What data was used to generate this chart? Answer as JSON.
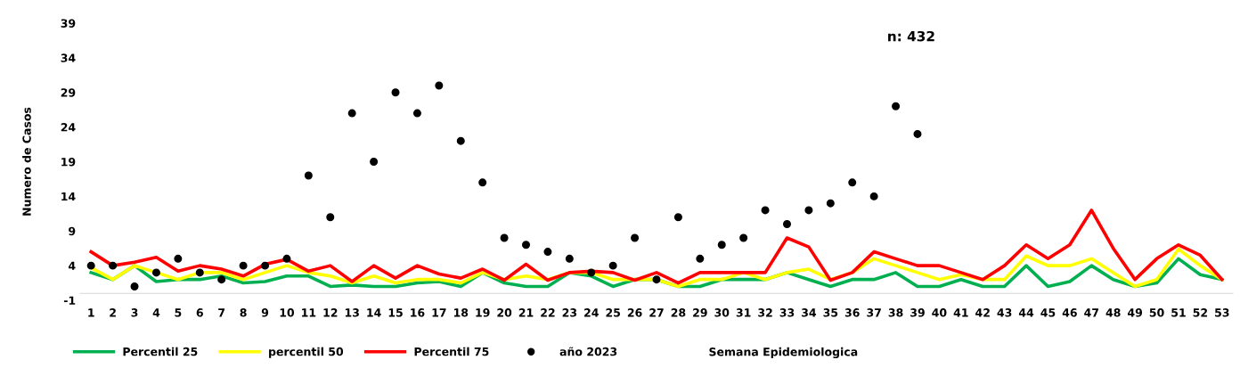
{
  "chart_data": {
    "type": "line",
    "xlabel": "Semana Epidemiologica",
    "ylabel": "Numero de Casos",
    "categories": [
      "1",
      "2",
      "3",
      "4",
      "5",
      "6",
      "7",
      "8",
      "9",
      "10",
      "11",
      "12",
      "13",
      "14",
      "15",
      "16",
      "17",
      "18",
      "19",
      "20",
      "21",
      "22",
      "23",
      "24",
      "25",
      "26",
      "27",
      "28",
      "29",
      "30",
      "31",
      "32",
      "33",
      "34",
      "35",
      "36",
      "37",
      "38",
      "39",
      "40",
      "41",
      "42",
      "43",
      "44",
      "45",
      "46",
      "47",
      "48",
      "49",
      "50",
      "51",
      "52",
      "53"
    ],
    "ylim": [
      -1,
      39
    ],
    "yticks": [
      -1,
      4,
      9,
      14,
      19,
      24,
      29,
      34,
      39
    ],
    "grid": false,
    "legend": "bottom",
    "line_style": "solid",
    "annotations": [
      "n: 432"
    ],
    "series": [
      {
        "name": "Percentil 25",
        "color": "#00b050",
        "values": [
          3,
          2,
          4,
          1.7,
          2,
          2,
          2.5,
          1.5,
          1.7,
          2.5,
          2.5,
          1,
          1.2,
          1,
          1,
          1.5,
          1.7,
          1,
          3,
          1.5,
          1,
          1,
          3,
          2.5,
          1,
          2,
          2,
          1,
          1,
          2,
          2,
          2,
          3,
          2,
          1,
          2,
          2,
          3,
          1,
          1,
          2,
          1,
          1,
          4,
          1,
          1.7,
          4,
          2,
          1,
          1.5,
          5,
          2.7,
          2
        ]
      },
      {
        "name": "percentil 50",
        "color": "#ffff00",
        "values": [
          3.7,
          2,
          4,
          3,
          2,
          3,
          3,
          2,
          3,
          4,
          3,
          2.5,
          1.5,
          2.5,
          1.5,
          2,
          2,
          1.5,
          3,
          2,
          2.5,
          2,
          3,
          3,
          2,
          2,
          2,
          1,
          2,
          2,
          3,
          2,
          3,
          3.5,
          2,
          3,
          5,
          4,
          3,
          2,
          2.7,
          2,
          2,
          5.4,
          4,
          4,
          5,
          3,
          1,
          2,
          6.4,
          4,
          2
        ]
      },
      {
        "name": "Percentil 75",
        "color": "#ff0000",
        "values": [
          6,
          4,
          4.5,
          5.2,
          3.2,
          4,
          3.5,
          2.5,
          4.2,
          4.9,
          3.2,
          4,
          1.7,
          4,
          2.2,
          4,
          2.8,
          2.2,
          3.5,
          1.9,
          4.2,
          1.9,
          3,
          3.2,
          3,
          1.9,
          3,
          1.5,
          3,
          3,
          3,
          3,
          8,
          6.7,
          1.9,
          3,
          6,
          5,
          4,
          4,
          3,
          2,
          4,
          7,
          5,
          7,
          12,
          6.5,
          2,
          5,
          7,
          5.5,
          2
        ]
      },
      {
        "name": "año 2023",
        "color": "#000000",
        "type": "scatter",
        "marker": "circle",
        "values": [
          4,
          4,
          1,
          3,
          5,
          3,
          2,
          4,
          4,
          5,
          17,
          11,
          26,
          19,
          29,
          26,
          30,
          22,
          16,
          8,
          7,
          6,
          5,
          3,
          4,
          8,
          2,
          11,
          5,
          7,
          8,
          12,
          10,
          12,
          13,
          16,
          14,
          27,
          23,
          null,
          null,
          null,
          null,
          null,
          null,
          null,
          null,
          null,
          null,
          null,
          null,
          null,
          null
        ]
      }
    ]
  }
}
